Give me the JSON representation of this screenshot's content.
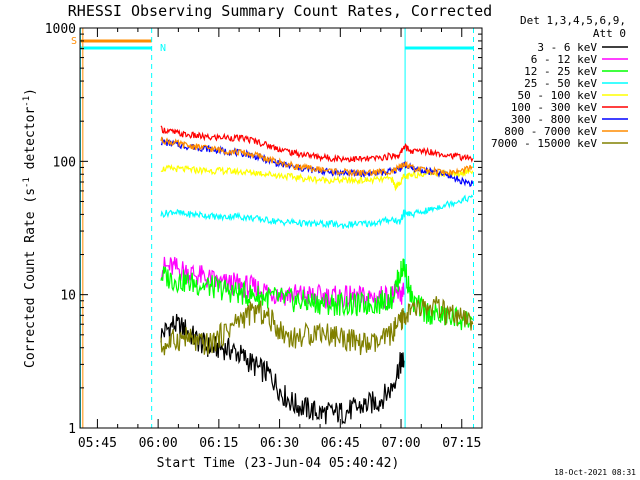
{
  "chart_data": {
    "type": "line",
    "title": "RHESSI Observing Summary Count Rates, Corrected",
    "xlabel": "Start Time (23-Jun-04 05:40:42)",
    "ylabel": "Corrected Count Rate (s",
    "ylabel_sup1": "-1",
    "ylabel_mid": " detector",
    "ylabel_sup2": "-1",
    "ylabel_end": ")",
    "yscale": "log",
    "ylim": [
      1,
      1000
    ],
    "xlim_minutes_after_start": [
      0,
      99.3
    ],
    "y_ticks": [
      {
        "value": 1,
        "label": "1"
      },
      {
        "value": 10,
        "label": "10"
      },
      {
        "value": 100,
        "label": "100"
      },
      {
        "value": 1000,
        "label": "1000"
      }
    ],
    "x_ticks": [
      {
        "minute": 4.3,
        "label": "05:45"
      },
      {
        "minute": 19.3,
        "label": "06:00"
      },
      {
        "minute": 34.3,
        "label": "06:15"
      },
      {
        "minute": 49.3,
        "label": "06:30"
      },
      {
        "minute": 64.3,
        "label": "06:45"
      },
      {
        "minute": 79.3,
        "label": "07:00"
      },
      {
        "minute": 94.3,
        "label": "07:15"
      }
    ],
    "legend_header": [
      "Det 1,3,4,5,6,9,",
      "Att 0"
    ],
    "series": [
      {
        "name": "3 - 6 keV",
        "color": "#000000",
        "points": [
          [
            20,
            5
          ],
          [
            23,
            6
          ],
          [
            26,
            5.5
          ],
          [
            29,
            4.5
          ],
          [
            32,
            4
          ],
          [
            35,
            4
          ],
          [
            38,
            3.8
          ],
          [
            41,
            3.3
          ],
          [
            44,
            2.8
          ],
          [
            47,
            2.5
          ],
          [
            50,
            1.8
          ],
          [
            53,
            1.5
          ],
          [
            56,
            1.4
          ],
          [
            59,
            1.3
          ],
          [
            62,
            1.3
          ],
          [
            65,
            1.3
          ],
          [
            68,
            1.4
          ],
          [
            71,
            1.5
          ],
          [
            74,
            1.6
          ],
          [
            77,
            2
          ],
          [
            79,
            3
          ],
          [
            80,
            3.2
          ]
        ]
      },
      {
        "name": "6 - 12 keV",
        "color": "#ff00ff",
        "points": [
          [
            20,
            16
          ],
          [
            23,
            16
          ],
          [
            26,
            15
          ],
          [
            29,
            14
          ],
          [
            32,
            13
          ],
          [
            35,
            12
          ],
          [
            38,
            12
          ],
          [
            41,
            11.5
          ],
          [
            44,
            11
          ],
          [
            47,
            10.5
          ],
          [
            50,
            10
          ],
          [
            53,
            10
          ],
          [
            56,
            9.8
          ],
          [
            59,
            9.7
          ],
          [
            62,
            9.6
          ],
          [
            65,
            9.5
          ],
          [
            68,
            9.5
          ],
          [
            71,
            9.5
          ],
          [
            74,
            9.6
          ],
          [
            77,
            9.8
          ],
          [
            79,
            10
          ],
          [
            80,
            10
          ]
        ]
      },
      {
        "name": "12 - 25 keV",
        "color": "#00ff00",
        "points": [
          [
            20,
            14
          ],
          [
            23,
            13
          ],
          [
            26,
            12.5
          ],
          [
            29,
            12
          ],
          [
            32,
            11.5
          ],
          [
            35,
            11
          ],
          [
            38,
            10.5
          ],
          [
            41,
            10
          ],
          [
            44,
            9.8
          ],
          [
            47,
            9.5
          ],
          [
            50,
            9.3
          ],
          [
            53,
            9
          ],
          [
            56,
            8.8
          ],
          [
            59,
            8.7
          ],
          [
            62,
            8.5
          ],
          [
            65,
            8.5
          ],
          [
            68,
            8.3
          ],
          [
            71,
            8.5
          ],
          [
            74,
            8.7
          ],
          [
            77,
            9.5
          ],
          [
            79,
            14
          ],
          [
            80,
            17
          ],
          [
            82,
            9
          ],
          [
            85,
            7.5
          ],
          [
            88,
            7
          ],
          [
            91,
            6.8
          ],
          [
            94,
            6.6
          ],
          [
            97,
            6.5
          ]
        ]
      },
      {
        "name": "25 - 50 keV",
        "color": "#00ffff",
        "points": [
          [
            20,
            40
          ],
          [
            23,
            42
          ],
          [
            26,
            40
          ],
          [
            29,
            40
          ],
          [
            32,
            39
          ],
          [
            35,
            38
          ],
          [
            38,
            39
          ],
          [
            41,
            38
          ],
          [
            44,
            37
          ],
          [
            47,
            36
          ],
          [
            50,
            35
          ],
          [
            53,
            35
          ],
          [
            56,
            34
          ],
          [
            59,
            34
          ],
          [
            62,
            34
          ],
          [
            65,
            33
          ],
          [
            68,
            34
          ],
          [
            71,
            34
          ],
          [
            74,
            35
          ],
          [
            77,
            37
          ],
          [
            79,
            35
          ],
          [
            80,
            41
          ],
          [
            82,
            40
          ],
          [
            85,
            42
          ],
          [
            88,
            45
          ],
          [
            91,
            48
          ],
          [
            94,
            51
          ],
          [
            97,
            54
          ]
        ]
      },
      {
        "name": "50 - 100 keV",
        "color": "#ffff00",
        "points": [
          [
            20,
            88
          ],
          [
            23,
            88
          ],
          [
            26,
            87
          ],
          [
            29,
            86
          ],
          [
            32,
            85
          ],
          [
            35,
            85
          ],
          [
            38,
            84
          ],
          [
            41,
            83
          ],
          [
            44,
            82
          ],
          [
            47,
            80
          ],
          [
            50,
            78
          ],
          [
            53,
            76
          ],
          [
            56,
            74
          ],
          [
            59,
            73
          ],
          [
            62,
            72
          ],
          [
            65,
            72
          ],
          [
            68,
            72
          ],
          [
            71,
            72
          ],
          [
            74,
            73
          ],
          [
            77,
            74
          ],
          [
            78,
            64
          ],
          [
            80,
            76
          ],
          [
            82,
            78
          ],
          [
            85,
            82
          ],
          [
            88,
            82
          ],
          [
            91,
            80
          ],
          [
            94,
            82
          ],
          [
            97,
            85
          ]
        ]
      },
      {
        "name": "100 - 300 keV",
        "color": "#ff0000",
        "points": [
          [
            20,
            175
          ],
          [
            23,
            165
          ],
          [
            26,
            158
          ],
          [
            29,
            155
          ],
          [
            32,
            150
          ],
          [
            35,
            152
          ],
          [
            38,
            150
          ],
          [
            41,
            148
          ],
          [
            44,
            140
          ],
          [
            47,
            130
          ],
          [
            50,
            122
          ],
          [
            53,
            115
          ],
          [
            56,
            112
          ],
          [
            59,
            108
          ],
          [
            62,
            106
          ],
          [
            65,
            105
          ],
          [
            68,
            104
          ],
          [
            71,
            104
          ],
          [
            74,
            106
          ],
          [
            77,
            110
          ],
          [
            79,
            112
          ],
          [
            80,
            130
          ],
          [
            82,
            118
          ],
          [
            85,
            120
          ],
          [
            88,
            116
          ],
          [
            91,
            112
          ],
          [
            94,
            108
          ],
          [
            97,
            105
          ]
        ]
      },
      {
        "name": "300 - 800 keV",
        "color": "#0000ff",
        "points": [
          [
            20,
            140
          ],
          [
            23,
            135
          ],
          [
            26,
            130
          ],
          [
            29,
            127
          ],
          [
            32,
            124
          ],
          [
            35,
            120
          ],
          [
            38,
            117
          ],
          [
            41,
            114
          ],
          [
            44,
            108
          ],
          [
            47,
            100
          ],
          [
            50,
            95
          ],
          [
            53,
            90
          ],
          [
            56,
            87
          ],
          [
            59,
            85
          ],
          [
            62,
            83
          ],
          [
            65,
            82
          ],
          [
            68,
            81
          ],
          [
            71,
            81
          ],
          [
            74,
            82
          ],
          [
            77,
            84
          ],
          [
            79,
            88
          ],
          [
            80,
            95
          ],
          [
            82,
            88
          ],
          [
            85,
            85
          ],
          [
            88,
            82
          ],
          [
            91,
            78
          ],
          [
            94,
            72
          ],
          [
            97,
            68
          ]
        ]
      },
      {
        "name": "800 - 7000 keV",
        "color": "#ff8c00",
        "points": [
          [
            20,
            145
          ],
          [
            23,
            138
          ],
          [
            26,
            132
          ],
          [
            29,
            128
          ],
          [
            32,
            125
          ],
          [
            35,
            121
          ],
          [
            38,
            118
          ],
          [
            41,
            115
          ],
          [
            44,
            110
          ],
          [
            47,
            102
          ],
          [
            50,
            97
          ],
          [
            53,
            92
          ],
          [
            56,
            89
          ],
          [
            59,
            87
          ],
          [
            62,
            85
          ],
          [
            65,
            83
          ],
          [
            68,
            82
          ],
          [
            71,
            82
          ],
          [
            74,
            83
          ],
          [
            77,
            85
          ],
          [
            79,
            89
          ],
          [
            80,
            95
          ],
          [
            82,
            89
          ],
          [
            85,
            86
          ],
          [
            88,
            84
          ],
          [
            91,
            82
          ],
          [
            94,
            84
          ],
          [
            97,
            90
          ]
        ]
      },
      {
        "name": "7000 - 15000 keV",
        "color": "#808000",
        "points": [
          [
            20,
            4
          ],
          [
            23,
            4.5
          ],
          [
            26,
            4.8
          ],
          [
            29,
            4.3
          ],
          [
            32,
            4.2
          ],
          [
            35,
            5
          ],
          [
            38,
            6
          ],
          [
            41,
            7
          ],
          [
            44,
            7.6
          ],
          [
            47,
            6.5
          ],
          [
            50,
            5.2
          ],
          [
            53,
            4.7
          ],
          [
            56,
            5
          ],
          [
            59,
            5.4
          ],
          [
            62,
            5
          ],
          [
            65,
            4.8
          ],
          [
            68,
            4.4
          ],
          [
            71,
            4.2
          ],
          [
            74,
            4.3
          ],
          [
            77,
            5.2
          ],
          [
            79,
            6
          ],
          [
            80,
            7
          ],
          [
            82,
            7.5
          ],
          [
            85,
            8
          ],
          [
            88,
            8
          ],
          [
            91,
            7
          ],
          [
            94,
            6.5
          ],
          [
            97,
            6
          ]
        ]
      }
    ],
    "annotations": [
      {
        "label": "S",
        "color": "#ff8c00"
      },
      {
        "label": "N",
        "color": "#00ffff"
      }
    ]
  },
  "footer": {
    "date_stamp": "18-Oct-2021 08:31"
  }
}
